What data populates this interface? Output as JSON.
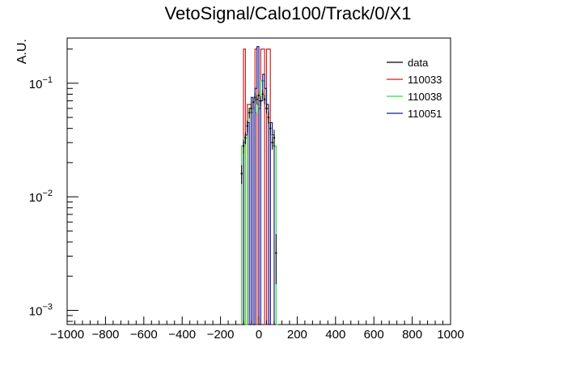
{
  "chart_data": {
    "type": "line",
    "title": "VetoSignal/Calo100/Track/0/X1",
    "ylabel": "A.U.",
    "xlabel": "",
    "xlim": [
      -1000,
      1000
    ],
    "ylim": [
      0.00075,
      0.25
    ],
    "y_scale": "log",
    "grid": false,
    "legend_position": "top-right",
    "x_ticks": [
      -1000,
      -800,
      -600,
      -400,
      -200,
      0,
      200,
      400,
      600,
      800,
      1000
    ],
    "y_ticks": [
      {
        "value": 0.001,
        "base": "10",
        "exp": "−3"
      },
      {
        "value": 0.01,
        "base": "10",
        "exp": "−2"
      },
      {
        "value": 0.1,
        "base": "10",
        "exp": "−1"
      }
    ],
    "series": [
      {
        "name": "data",
        "color": "#000000",
        "style": "points",
        "points": [
          {
            "x": -90,
            "y": 0.016,
            "err": 0.003
          },
          {
            "x": -80,
            "y": 0.028,
            "err": 0.004
          },
          {
            "x": -70,
            "y": 0.033,
            "err": 0.004
          },
          {
            "x": -60,
            "y": 0.042,
            "err": 0.005
          },
          {
            "x": -50,
            "y": 0.055,
            "err": 0.006
          },
          {
            "x": -40,
            "y": 0.06,
            "err": 0.006
          },
          {
            "x": -30,
            "y": 0.068,
            "err": 0.007
          },
          {
            "x": -20,
            "y": 0.075,
            "err": 0.007
          },
          {
            "x": -10,
            "y": 0.072,
            "err": 0.007
          },
          {
            "x": 0,
            "y": 0.078,
            "err": 0.007
          },
          {
            "x": 10,
            "y": 0.07,
            "err": 0.007
          },
          {
            "x": 20,
            "y": 0.08,
            "err": 0.007
          },
          {
            "x": 30,
            "y": 0.072,
            "err": 0.007
          },
          {
            "x": 40,
            "y": 0.06,
            "err": 0.006
          },
          {
            "x": 50,
            "y": 0.05,
            "err": 0.006
          },
          {
            "x": 60,
            "y": 0.04,
            "err": 0.005
          },
          {
            "x": 70,
            "y": 0.03,
            "err": 0.004
          },
          {
            "x": 80,
            "y": 0.033,
            "err": 0.006
          },
          {
            "x": 90,
            "y": 0.0032,
            "err": 0.0015
          }
        ]
      },
      {
        "name": "110033",
        "color": "#cc2222",
        "style": "step",
        "bins": [
          {
            "x0": -100,
            "x1": -80,
            "y": 0.00075
          },
          {
            "x0": -80,
            "x1": -70,
            "y": 0.2
          },
          {
            "x0": -70,
            "x1": -60,
            "y": 0.00075
          },
          {
            "x0": -60,
            "x1": -40,
            "y": 0.065
          },
          {
            "x0": -40,
            "x1": -20,
            "y": 0.00075
          },
          {
            "x0": -20,
            "x1": -10,
            "y": 0.2
          },
          {
            "x0": -10,
            "x1": 0,
            "y": 0.00075
          },
          {
            "x0": 0,
            "x1": 10,
            "y": 0.06
          },
          {
            "x0": 10,
            "x1": 30,
            "y": 0.2
          },
          {
            "x0": 30,
            "x1": 40,
            "y": 0.00075
          },
          {
            "x0": 40,
            "x1": 60,
            "y": 0.2
          },
          {
            "x0": 60,
            "x1": 80,
            "y": 0.00075
          }
        ]
      },
      {
        "name": "110038",
        "color": "#33dd33",
        "style": "step",
        "bins": [
          {
            "x0": -90,
            "x1": -80,
            "y": 0.028
          },
          {
            "x0": -80,
            "x1": -70,
            "y": 0.033
          },
          {
            "x0": -70,
            "x1": -60,
            "y": 0.00075
          },
          {
            "x0": -60,
            "x1": -50,
            "y": 0.045
          },
          {
            "x0": -50,
            "x1": -40,
            "y": 0.06
          },
          {
            "x0": -40,
            "x1": -30,
            "y": 0.055
          },
          {
            "x0": -30,
            "x1": -20,
            "y": 0.06
          },
          {
            "x0": -20,
            "x1": -10,
            "y": 0.055
          },
          {
            "x0": -10,
            "x1": 0,
            "y": 0.065
          },
          {
            "x0": 0,
            "x1": 10,
            "y": 0.07
          },
          {
            "x0": 10,
            "x1": 20,
            "y": 0.105
          },
          {
            "x0": 20,
            "x1": 30,
            "y": 0.105
          },
          {
            "x0": 30,
            "x1": 40,
            "y": 0.09
          },
          {
            "x0": 40,
            "x1": 50,
            "y": 0.06
          },
          {
            "x0": 50,
            "x1": 60,
            "y": 0.045
          },
          {
            "x0": 60,
            "x1": 70,
            "y": 0.035
          },
          {
            "x0": 70,
            "x1": 80,
            "y": 0.028
          },
          {
            "x0": 80,
            "x1": 90,
            "y": 0.028
          },
          {
            "x0": 90,
            "x1": 100,
            "y": 0.00075
          }
        ]
      },
      {
        "name": "110051",
        "color": "#1a1a99",
        "style": "step",
        "bins": [
          {
            "x0": -90,
            "x1": -80,
            "y": 0.00075
          },
          {
            "x0": -80,
            "x1": -70,
            "y": 0.03
          },
          {
            "x0": -70,
            "x1": -60,
            "y": 0.035
          },
          {
            "x0": -60,
            "x1": -50,
            "y": 0.045
          },
          {
            "x0": -50,
            "x1": -40,
            "y": 0.00075
          },
          {
            "x0": -40,
            "x1": -30,
            "y": 0.075
          },
          {
            "x0": -30,
            "x1": -20,
            "y": 0.00075
          },
          {
            "x0": -20,
            "x1": -10,
            "y": 0.09
          },
          {
            "x0": -10,
            "x1": 0,
            "y": 0.21
          },
          {
            "x0": 0,
            "x1": 10,
            "y": 0.00075
          },
          {
            "x0": 10,
            "x1": 20,
            "y": 0.07
          },
          {
            "x0": 20,
            "x1": 30,
            "y": 0.12
          },
          {
            "x0": 30,
            "x1": 40,
            "y": 0.09
          },
          {
            "x0": 40,
            "x1": 50,
            "y": 0.065
          },
          {
            "x0": 50,
            "x1": 60,
            "y": 0.00075
          },
          {
            "x0": 60,
            "x1": 70,
            "y": 0.045
          },
          {
            "x0": 70,
            "x1": 80,
            "y": 0.035
          },
          {
            "x0": 80,
            "x1": 90,
            "y": 0.00075
          }
        ]
      }
    ]
  }
}
